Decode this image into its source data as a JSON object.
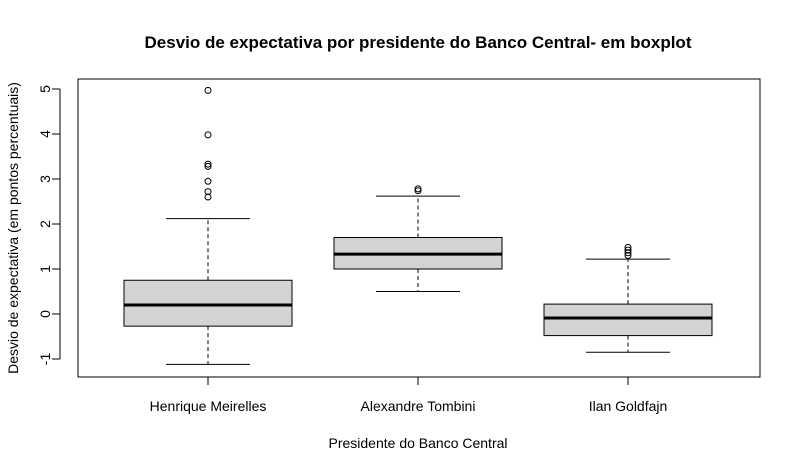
{
  "chart_data": {
    "type": "boxplot",
    "title": "Desvio de expectativa por presidente do Banco Central- em boxplot",
    "xlabel": "Presidente do Banco Central",
    "ylabel": "Desvio de expectativa (em pontos percentuais)",
    "ylim": [
      -1.4,
      5.2
    ],
    "yticks": [
      "-1",
      "0",
      "1",
      "2",
      "3",
      "4",
      "5"
    ],
    "grid": false,
    "categories": [
      "Henrique Meirelles",
      "Alexandre Tombini",
      "Ilan Goldfajn"
    ],
    "boxes": [
      {
        "category": "Henrique Meirelles",
        "whisker_low": -1.12,
        "q1": -0.27,
        "median": 0.2,
        "q3": 0.75,
        "whisker_high": 2.12,
        "outliers": [
          2.6,
          2.72,
          2.95,
          3.28,
          3.33,
          3.98,
          4.97
        ]
      },
      {
        "category": "Alexandre Tombini",
        "whisker_low": 0.5,
        "q1": 1.0,
        "median": 1.33,
        "q3": 1.7,
        "whisker_high": 2.62,
        "outliers": [
          2.74,
          2.78
        ]
      },
      {
        "category": "Ilan Goldfajn",
        "whisker_low": -0.85,
        "q1": -0.48,
        "median": -0.09,
        "q3": 0.22,
        "whisker_high": 1.22,
        "outliers": [
          1.3,
          1.36,
          1.42,
          1.48
        ]
      }
    ],
    "colors": {
      "box_fill": "#d3d3d3",
      "stroke": "#000000"
    }
  }
}
